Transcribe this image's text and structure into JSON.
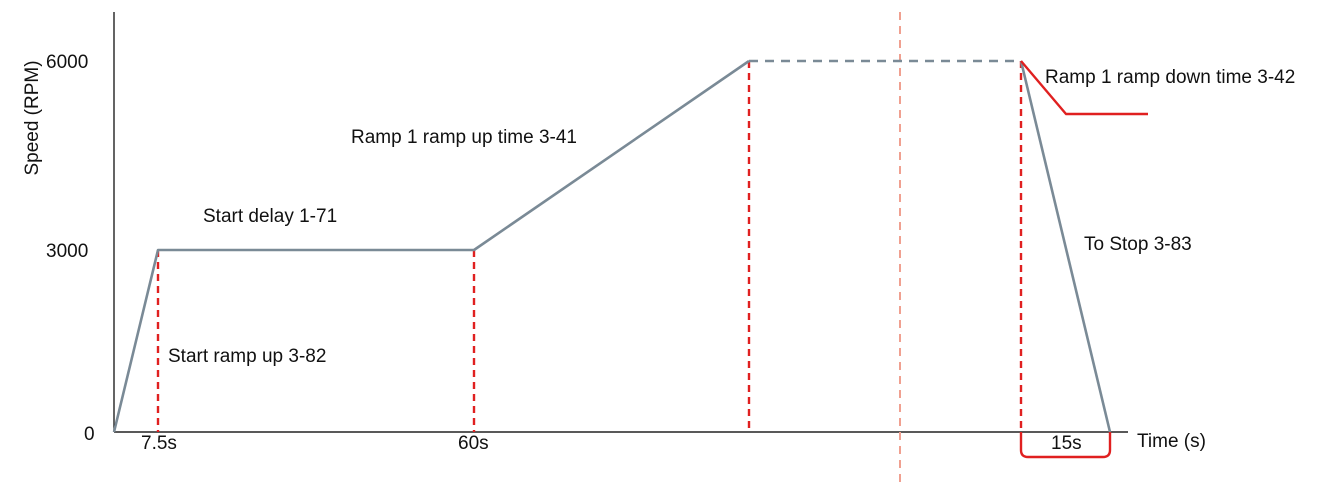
{
  "axes": {
    "y_label": "Speed (RPM)",
    "x_label": "Time (s)",
    "y_ticks": [
      "0",
      "3000",
      "6000"
    ],
    "x_ticks": [
      "7.5s",
      "60s"
    ],
    "bracket_label": "15s"
  },
  "annotations": {
    "start_ramp_up": "Start ramp up 3-82",
    "start_delay": "Start delay 1-71",
    "ramp_up_time": "Ramp 1 ramp up time 3-41",
    "ramp_down_time": "Ramp 1 ramp down time 3-42",
    "to_stop": "To Stop 3-83"
  },
  "colors": {
    "profile_line": "#7a8a96",
    "marker_dashes": "#e02020",
    "ramp_down_line": "#e02020",
    "center_divider": "#f0a090",
    "axis": "#222222"
  }
}
